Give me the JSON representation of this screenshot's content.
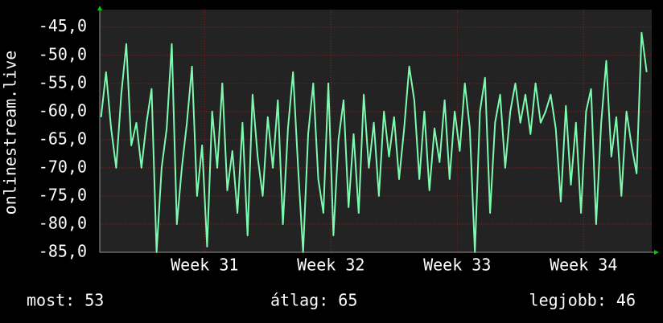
{
  "chart_data": {
    "type": "line",
    "ylabel": "onlinestream.live",
    "x": [
      30.18,
      30.22,
      30.26,
      30.3,
      30.34,
      30.38,
      30.42,
      30.46,
      30.5,
      30.54,
      30.58,
      30.62,
      30.66,
      30.7,
      30.74,
      30.78,
      30.82,
      30.86,
      30.9,
      30.94,
      30.98,
      31.02,
      31.06,
      31.1,
      31.14,
      31.18,
      31.22,
      31.26,
      31.3,
      31.34,
      31.38,
      31.42,
      31.46,
      31.5,
      31.54,
      31.58,
      31.62,
      31.66,
      31.7,
      31.74,
      31.78,
      31.82,
      31.86,
      31.9,
      31.94,
      31.98,
      32.02,
      32.06,
      32.1,
      32.14,
      32.18,
      32.22,
      32.26,
      32.3,
      32.34,
      32.38,
      32.42,
      32.46,
      32.5,
      32.54,
      32.58,
      32.62,
      32.66,
      32.7,
      32.74,
      32.78,
      32.82,
      32.86,
      32.9,
      32.94,
      32.98,
      33.02,
      33.06,
      33.1,
      33.14,
      33.18,
      33.22,
      33.26,
      33.3,
      33.34,
      33.38,
      33.42,
      33.46,
      33.5,
      33.54,
      33.58,
      33.62,
      33.66,
      33.7,
      33.74,
      33.78,
      33.82,
      33.86,
      33.9,
      33.94,
      33.98,
      34.02,
      34.06,
      34.1,
      34.14,
      34.18,
      34.22,
      34.26,
      34.3,
      34.34,
      34.38,
      34.42,
      34.46,
      34.5
    ],
    "values": [
      -61,
      -53,
      -63,
      -70,
      -57,
      -48,
      -66,
      -62,
      -70,
      -62,
      -56,
      -85,
      -70,
      -63,
      -48,
      -80,
      -70,
      -62,
      -52,
      -75,
      -66,
      -84,
      -60,
      -70,
      -55,
      -74,
      -67,
      -78,
      -62,
      -82,
      -57,
      -68,
      -75,
      -61,
      -70,
      -58,
      -80,
      -63,
      -53,
      -70,
      -85,
      -64,
      -55,
      -72,
      -78,
      -55,
      -82,
      -65,
      -58,
      -77,
      -64,
      -78,
      -57,
      -70,
      -62,
      -75,
      -60,
      -68,
      -61,
      -72,
      -63,
      -52,
      -58,
      -72,
      -60,
      -74,
      -63,
      -69,
      -58,
      -72,
      -60,
      -67,
      -55,
      -63,
      -85,
      -60,
      -54,
      -78,
      -62,
      -57,
      -70,
      -60,
      -55,
      -62,
      -57,
      -64,
      -55,
      -62,
      -60,
      -57,
      -63,
      -76,
      -59,
      -73,
      -62,
      -78,
      -60,
      -56,
      -80,
      -62,
      -51,
      -68,
      -61,
      -75,
      -60,
      -66,
      -71,
      -46,
      -53
    ],
    "color": "#7dfab0",
    "xlim": [
      30.17,
      34.54
    ],
    "xticks": [
      {
        "value": 31,
        "label": "Week 31"
      },
      {
        "value": 32,
        "label": "Week 32"
      },
      {
        "value": 33,
        "label": "Week 33"
      },
      {
        "value": 34,
        "label": "Week 34"
      }
    ],
    "ylim": [
      -85,
      -41.9
    ],
    "yticks": [
      {
        "value": -85,
        "label": "-85,0"
      },
      {
        "value": -80,
        "label": "-80,0"
      },
      {
        "value": -75,
        "label": "-75,0"
      },
      {
        "value": -70,
        "label": "-70,0"
      },
      {
        "value": -65,
        "label": "-65,0"
      },
      {
        "value": -60,
        "label": "-60,0"
      },
      {
        "value": -55,
        "label": "-55,0"
      },
      {
        "value": -50,
        "label": "-50,0"
      },
      {
        "value": -45,
        "label": "-45,0"
      }
    ],
    "grid": true,
    "annotations": [
      "most: 53",
      "átlag: 65",
      "legjobb: 46"
    ]
  }
}
